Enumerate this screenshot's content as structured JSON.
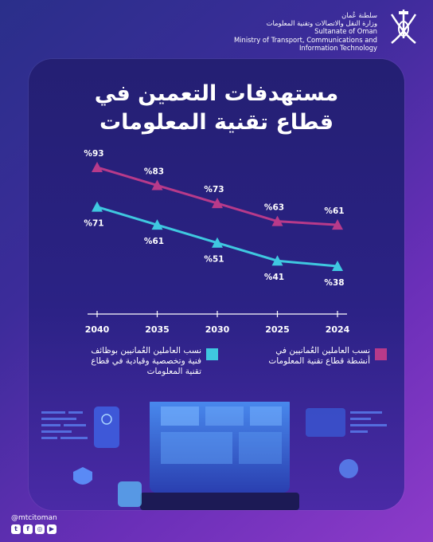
{
  "header": {
    "ministry_ar_1": "سلطنة عُمان",
    "ministry_ar_2": "وزارة النقل والاتصالات وتقنية المعلومات",
    "ministry_en_1": "Sultanate of Oman",
    "ministry_en_2": "Ministry of Transport, Communications and",
    "ministry_en_3": "Information Technology"
  },
  "title": {
    "line1": "مستهدفات التعمين في",
    "line2": "قطاع تقنية المعلومات"
  },
  "colors": {
    "series_a": "#b83a8a",
    "series_b": "#3fc8e0"
  },
  "chart_data": {
    "type": "line",
    "x": [
      "2024",
      "2025",
      "2030",
      "2035",
      "2040"
    ],
    "series": [
      {
        "name": "نسب العاملين العُمانيين في أنشطة قطاع تقنية المعلومات",
        "values": [
          61,
          63,
          73,
          83,
          93
        ],
        "labels": [
          "%61",
          "%63",
          "%73",
          "%83",
          "%93"
        ]
      },
      {
        "name": "نسب العاملين العُمانيين بوظائف فنية وتخصصية وقيادية في قطاع تقنية المعلومات",
        "values": [
          38,
          41,
          51,
          61,
          71
        ],
        "labels": [
          "%38",
          "%41",
          "%51",
          "%61",
          "%71"
        ]
      }
    ],
    "x_reversed": true
  },
  "legend": {
    "a_text": "نسب العاملين العُمانيين في أنشطة قطاع تقنية المعلومات",
    "b_text": "نسب العاملين العُمانيين بوظائف فنية وتخصصية وقيادية في قطاع تقنية المعلومات"
  },
  "footer": {
    "handle": "@mtcitoman",
    "social_icons": [
      "twitter-icon",
      "facebook-icon",
      "instagram-icon",
      "youtube-icon"
    ]
  }
}
